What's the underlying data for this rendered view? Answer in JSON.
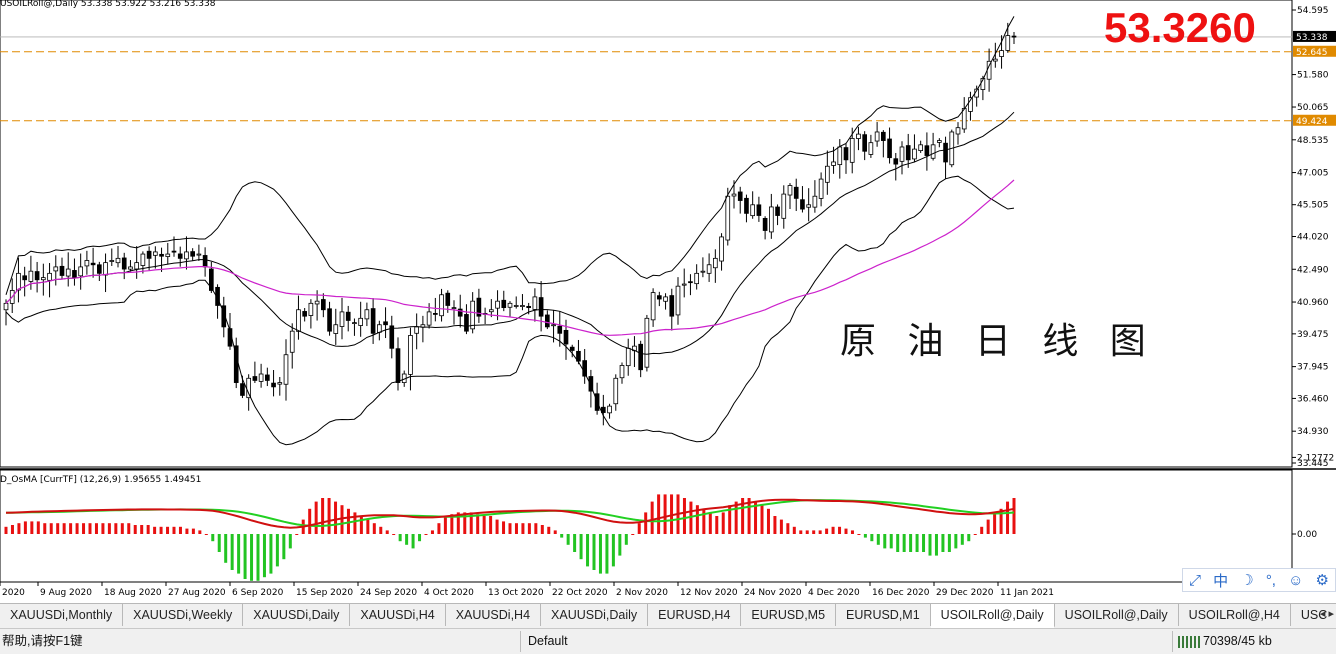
{
  "chart_data": [
    {
      "type": "candlestick",
      "symbol_header": "USOILRoll@,Daily  53.338 53.922 53.216 53.338",
      "price_ticks": [
        "54.595",
        "53.338",
        "52.645",
        "51.580",
        "50.065",
        "49.424",
        "48.535",
        "47.005",
        "45.505",
        "44.020",
        "42.490",
        "40.960",
        "39.475",
        "37.945",
        "36.460",
        "34.930",
        "33.445"
      ],
      "current_price_label": "53.338",
      "hlines": [
        {
          "price": 52.645,
          "label": "52.645",
          "style": "dashed",
          "color": "#e08a00"
        },
        {
          "price": 49.424,
          "label": "49.424",
          "style": "dashed",
          "color": "#e08a00"
        }
      ],
      "x_labels": [
        "2020",
        "9 Aug 2020",
        "18 Aug 2020",
        "27 Aug 2020",
        "6 Sep 2020",
        "15 Sep 2020",
        "24 Sep 2020",
        "4 Oct 2020",
        "13 Oct 2020",
        "22 Oct 2020",
        "2 Nov 2020",
        "12 Nov 2020",
        "24 Nov 2020",
        "4 Dec 2020",
        "16 Dec 2020",
        "29 Dec 2020",
        "11 Jan 2021"
      ],
      "ylim": [
        33.445,
        54.595
      ],
      "candles_close": [
        40.9,
        41.5,
        42.3,
        42.0,
        42.4,
        42.0,
        42.1,
        42.3,
        42.6,
        42.2,
        42.5,
        42.1,
        42.6,
        42.9,
        42.7,
        42.3,
        42.8,
        42.9,
        43.0,
        42.5,
        42.6,
        42.8,
        43.2,
        43.0,
        43.3,
        43.1,
        43.2,
        43.3,
        43.0,
        43.3,
        43.1,
        43.2,
        42.6,
        41.5,
        40.8,
        39.8,
        38.9,
        37.2,
        36.6,
        37.4,
        37.3,
        37.6,
        37.3,
        37.0,
        37.2,
        38.5,
        39.6,
        40.6,
        40.3,
        40.9,
        41.0,
        40.6,
        39.6,
        39.9,
        40.5,
        40.1,
        40.0,
        40.2,
        40.6,
        39.5,
        39.9,
        39.9,
        38.8,
        37.2,
        37.6,
        39.4,
        39.8,
        39.9,
        40.5,
        40.4,
        41.3,
        40.8,
        40.7,
        40.3,
        39.6,
        41.0,
        40.3,
        40.4,
        40.6,
        41.0,
        40.7,
        40.9,
        40.8,
        40.8,
        40.7,
        41.2,
        40.3,
        39.8,
        39.9,
        39.5,
        39.0,
        38.7,
        38.2,
        37.5,
        36.8,
        35.9,
        35.8,
        36.1,
        37.4,
        38.0,
        38.8,
        38.9,
        37.8,
        40.2,
        41.4,
        41.1,
        41.2,
        40.3,
        41.7,
        41.8,
        41.9,
        42.3,
        42.4,
        42.7,
        43.0,
        44.0,
        45.9,
        46.0,
        45.7,
        45.1,
        45.5,
        45.0,
        44.3,
        45.4,
        45.0,
        46.0,
        46.4,
        45.8,
        45.3,
        45.5,
        45.9,
        46.7,
        47.3,
        47.5,
        48.2,
        47.6,
        48.6,
        48.8,
        48.0,
        48.4,
        48.9,
        48.5,
        47.7,
        47.4,
        48.2,
        47.6,
        48.1,
        48.3,
        47.8,
        48.3,
        48.5,
        47.5,
        48.9,
        49.1,
        50.0,
        50.5,
        50.9,
        51.4,
        52.2,
        52.3,
        52.7,
        53.4,
        53.338
      ]
    },
    {
      "type": "bar+line",
      "indicator_header": "D_OsMA [CurrTF] (12,26,9) 1.95655 1.49451",
      "y_ticks": [
        "2.12772",
        "0.00"
      ],
      "series": [
        {
          "name": "histogram",
          "color_pos": "#e81010",
          "color_neg": "#22c422"
        },
        {
          "name": "MACD",
          "color": "#d01010"
        },
        {
          "name": "Signal",
          "color": "#22d022"
        }
      ],
      "histogram_values": [
        0.2,
        0.25,
        0.3,
        0.35,
        0.35,
        0.35,
        0.3,
        0.3,
        0.3,
        0.3,
        0.3,
        0.3,
        0.3,
        0.3,
        0.3,
        0.3,
        0.3,
        0.3,
        0.3,
        0.3,
        0.25,
        0.25,
        0.25,
        0.2,
        0.2,
        0.2,
        0.2,
        0.2,
        0.15,
        0.15,
        0.1,
        0.0,
        -0.2,
        -0.5,
        -0.8,
        -1.0,
        -1.1,
        -1.25,
        -1.3,
        -1.3,
        -1.2,
        -1.1,
        -0.9,
        -0.7,
        -0.4,
        0.0,
        0.4,
        0.7,
        0.9,
        1.0,
        1.0,
        0.9,
        0.8,
        0.7,
        0.6,
        0.5,
        0.4,
        0.3,
        0.2,
        0.1,
        0.0,
        -0.2,
        -0.3,
        -0.4,
        -0.2,
        0.0,
        0.1,
        0.3,
        0.5,
        0.55,
        0.6,
        0.6,
        0.6,
        0.55,
        0.5,
        0.5,
        0.4,
        0.35,
        0.3,
        0.3,
        0.3,
        0.3,
        0.3,
        0.25,
        0.2,
        0.1,
        -0.1,
        -0.3,
        -0.5,
        -0.7,
        -0.9,
        -1.0,
        -1.1,
        -1.1,
        -0.9,
        -0.6,
        -0.3,
        0.0,
        0.3,
        0.6,
        0.9,
        1.1,
        1.1,
        1.1,
        1.1,
        1.0,
        0.9,
        0.8,
        0.7,
        0.6,
        0.5,
        0.6,
        0.8,
        0.9,
        1.0,
        1.0,
        0.9,
        0.8,
        0.7,
        0.5,
        0.4,
        0.3,
        0.2,
        0.1,
        0.1,
        0.1,
        0.1,
        0.15,
        0.2,
        0.2,
        0.15,
        0.1,
        0.0,
        -0.1,
        -0.2,
        -0.3,
        -0.4,
        -0.4,
        -0.5,
        -0.5,
        -0.5,
        -0.5,
        -0.5,
        -0.6,
        -0.6,
        -0.5,
        -0.5,
        -0.4,
        -0.3,
        -0.2,
        0.0,
        0.2,
        0.4,
        0.6,
        0.7,
        0.9,
        1.0
      ]
    }
  ],
  "overlay": {
    "price_title": "53.3260",
    "cn_title": "原 油 日 线 图"
  },
  "tabs": [
    "XAUUSDi,Monthly",
    "XAUUSDi,Weekly",
    "XAUUSDi,Daily",
    "XAUUSDi,H4",
    "XAUUSDi,H4",
    "XAUUSDi,Daily",
    "EURUSD,H4",
    "EURUSD,M5",
    "EURUSD,M1",
    "USOILRoll@,Daily",
    "USOILRoll@,Daily",
    "USOILRoll@,H4",
    "USC"
  ],
  "active_tab_index": 9,
  "status": {
    "help": "帮助,请按F1键",
    "profile": "Default",
    "traffic": "70398/45 kb"
  },
  "toolbar_icons": [
    "fit-icon",
    "chinese-input-icon",
    "moon-icon",
    "punctuation-icon",
    "user-icon",
    "settings-icon"
  ],
  "colors": {
    "up_candle": "#ffffff",
    "down_candle": "#000000",
    "ma": "#cc22cc",
    "band": "#000000",
    "title_red": "#ee1111"
  }
}
